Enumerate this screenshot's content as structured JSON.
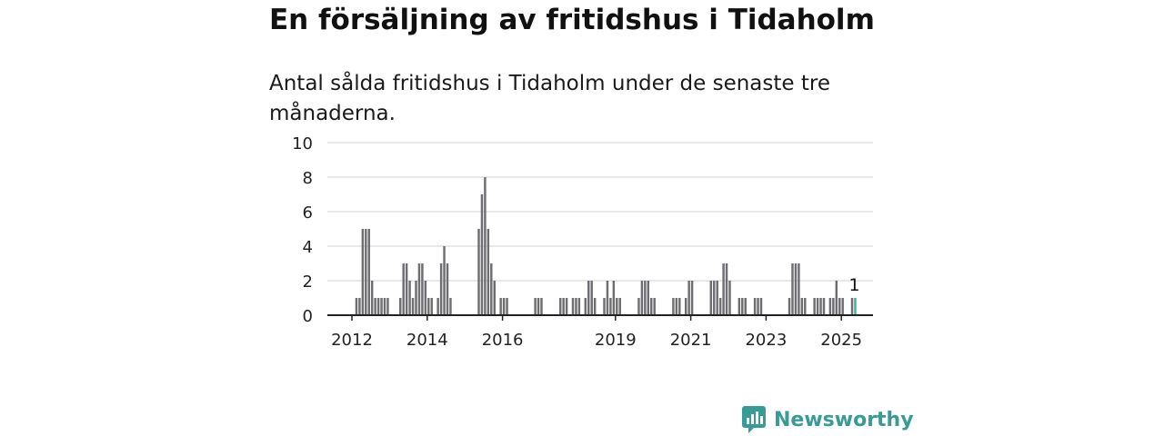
{
  "title": "En försäljning av fritidshus i Tidaholm",
  "subtitle": "Antal sålda fritidshus i Tidaholm under de senaste tre månaderna.",
  "brand": {
    "name": "Newsworthy",
    "color": "#3a9a96"
  },
  "colors": {
    "bar": "#6e6e72",
    "highlight": "#2fb5ac",
    "grid": "#d9d9d9",
    "axis": "#222222"
  },
  "chart_data": {
    "type": "bar",
    "y_ticks": [
      0,
      2,
      4,
      6,
      8,
      10
    ],
    "ylim": [
      0,
      10
    ],
    "x_ticks": [
      {
        "label": "2012",
        "at": "2012-01"
      },
      {
        "label": "2014",
        "at": "2014-01"
      },
      {
        "label": "2016",
        "at": "2016-01"
      },
      {
        "label": "2019",
        "at": "2019-01"
      },
      {
        "label": "2021",
        "at": "2021-01"
      },
      {
        "label": "2023",
        "at": "2023-01"
      },
      {
        "label": "2025",
        "at": "2025-01"
      }
    ],
    "x_range": [
      "2011-01",
      "2025-06"
    ],
    "highlight": {
      "month": "2025-05",
      "value": 1,
      "label": "1"
    },
    "values": [
      [
        "2012-02",
        1
      ],
      [
        "2012-03",
        1
      ],
      [
        "2012-04",
        5
      ],
      [
        "2012-05",
        5
      ],
      [
        "2012-06",
        5
      ],
      [
        "2012-07",
        2
      ],
      [
        "2012-08",
        1
      ],
      [
        "2012-09",
        1
      ],
      [
        "2012-10",
        1
      ],
      [
        "2012-11",
        1
      ],
      [
        "2012-12",
        1
      ],
      [
        "2013-04",
        1
      ],
      [
        "2013-05",
        3
      ],
      [
        "2013-06",
        3
      ],
      [
        "2013-07",
        2
      ],
      [
        "2013-08",
        1
      ],
      [
        "2013-09",
        2
      ],
      [
        "2013-10",
        3
      ],
      [
        "2013-11",
        3
      ],
      [
        "2013-12",
        2
      ],
      [
        "2014-01",
        1
      ],
      [
        "2014-02",
        1
      ],
      [
        "2014-04",
        1
      ],
      [
        "2014-05",
        3
      ],
      [
        "2014-06",
        4
      ],
      [
        "2014-07",
        3
      ],
      [
        "2014-08",
        1
      ],
      [
        "2015-05",
        5
      ],
      [
        "2015-06",
        7
      ],
      [
        "2015-07",
        8
      ],
      [
        "2015-08",
        5
      ],
      [
        "2015-09",
        3
      ],
      [
        "2015-10",
        2
      ],
      [
        "2015-12",
        1
      ],
      [
        "2016-01",
        1
      ],
      [
        "2016-02",
        1
      ],
      [
        "2016-11",
        1
      ],
      [
        "2016-12",
        1
      ],
      [
        "2017-01",
        1
      ],
      [
        "2017-07",
        1
      ],
      [
        "2017-08",
        1
      ],
      [
        "2017-09",
        1
      ],
      [
        "2017-11",
        1
      ],
      [
        "2017-12",
        1
      ],
      [
        "2018-01",
        1
      ],
      [
        "2018-03",
        1
      ],
      [
        "2018-04",
        2
      ],
      [
        "2018-05",
        2
      ],
      [
        "2018-06",
        1
      ],
      [
        "2018-09",
        1
      ],
      [
        "2018-10",
        2
      ],
      [
        "2018-11",
        1
      ],
      [
        "2018-12",
        2
      ],
      [
        "2019-01",
        1
      ],
      [
        "2019-02",
        1
      ],
      [
        "2019-08",
        1
      ],
      [
        "2019-09",
        2
      ],
      [
        "2019-10",
        2
      ],
      [
        "2019-11",
        2
      ],
      [
        "2019-12",
        1
      ],
      [
        "2020-01",
        1
      ],
      [
        "2020-07",
        1
      ],
      [
        "2020-08",
        1
      ],
      [
        "2020-09",
        1
      ],
      [
        "2020-11",
        1
      ],
      [
        "2020-12",
        2
      ],
      [
        "2021-01",
        2
      ],
      [
        "2021-07",
        2
      ],
      [
        "2021-08",
        2
      ],
      [
        "2021-09",
        2
      ],
      [
        "2021-10",
        1
      ],
      [
        "2021-11",
        3
      ],
      [
        "2021-12",
        3
      ],
      [
        "2022-01",
        2
      ],
      [
        "2022-04",
        1
      ],
      [
        "2022-05",
        1
      ],
      [
        "2022-06",
        1
      ],
      [
        "2022-09",
        1
      ],
      [
        "2022-10",
        1
      ],
      [
        "2022-11",
        1
      ],
      [
        "2023-08",
        1
      ],
      [
        "2023-09",
        3
      ],
      [
        "2023-10",
        3
      ],
      [
        "2023-11",
        3
      ],
      [
        "2023-12",
        1
      ],
      [
        "2024-01",
        1
      ],
      [
        "2024-04",
        1
      ],
      [
        "2024-05",
        1
      ],
      [
        "2024-06",
        1
      ],
      [
        "2024-07",
        1
      ],
      [
        "2024-09",
        1
      ],
      [
        "2024-10",
        1
      ],
      [
        "2024-11",
        2
      ],
      [
        "2024-12",
        1
      ],
      [
        "2025-01",
        1
      ],
      [
        "2025-04",
        1
      ],
      [
        "2025-05",
        1
      ]
    ]
  }
}
